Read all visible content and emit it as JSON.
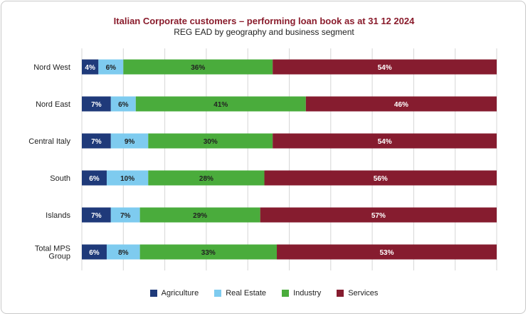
{
  "chart_data": {
    "type": "bar",
    "orientation": "horizontal",
    "stacked": true,
    "title": "Italian Corporate customers – performing loan book as at 31 12 2024",
    "subtitle": "REG EAD by geography and business segment",
    "categories": [
      "Nord West",
      "Nord East",
      "Central Italy",
      "South",
      "Islands",
      "Total MPS Group"
    ],
    "category_lines": [
      [
        "Nord West"
      ],
      [
        "Nord East"
      ],
      [
        "Central Italy"
      ],
      [
        "South"
      ],
      [
        "Islands"
      ],
      [
        "Total MPS",
        "Group"
      ]
    ],
    "xlim": [
      0,
      100
    ],
    "grid": true,
    "legend_position": "bottom",
    "series": [
      {
        "name": "Agriculture",
        "color": "#1f3a7a",
        "label_color": "#ffffff",
        "values": [
          4,
          7,
          7,
          6,
          7,
          6
        ],
        "labels": [
          "4%",
          "7%",
          "7%",
          "6%",
          "7%",
          "6%"
        ]
      },
      {
        "name": "Real Estate",
        "color": "#7ecbef",
        "label_color": "#222222",
        "values": [
          6,
          6,
          9,
          10,
          7,
          8
        ],
        "labels": [
          "6%",
          "6%",
          "9%",
          "10%",
          "7%",
          "8%"
        ]
      },
      {
        "name": "Industry",
        "color": "#4aac3c",
        "label_color": "#222222",
        "values": [
          36,
          41,
          30,
          28,
          29,
          33
        ],
        "labels": [
          "36%",
          "41%",
          "30%",
          "28%",
          "29%",
          "33%"
        ]
      },
      {
        "name": "Services",
        "color": "#861c2f",
        "label_color": "#ffffff",
        "values": [
          54,
          46,
          54,
          56,
          57,
          53
        ],
        "labels": [
          "54%",
          "46%",
          "54%",
          "56%",
          "57%",
          "53%"
        ]
      }
    ]
  }
}
